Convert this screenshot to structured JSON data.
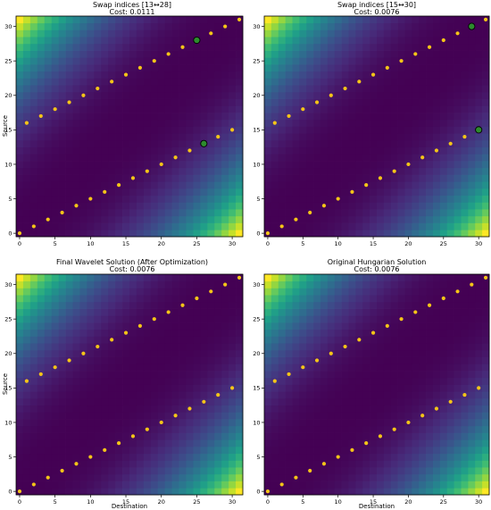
{
  "colormap": {
    "name": "viridis",
    "stops": [
      "#440154",
      "#482878",
      "#3e4989",
      "#31688e",
      "#26828e",
      "#1f9e89",
      "#35b779",
      "#6ece58",
      "#b5de2b",
      "#fde725"
    ]
  },
  "colors": {
    "assignment_dot": "#f5c518",
    "swap_dot": "#2e8b2e",
    "swap_dot_edge": "#000000"
  },
  "chart_data": [
    {
      "type": "heatmap",
      "title": "Swap indices [13↔28]",
      "subtitle": "Cost: 0.0111",
      "xlabel": "",
      "ylabel": "Source",
      "n": 32,
      "xlim": [
        -0.5,
        31.5
      ],
      "ylim": [
        -0.5,
        31.5
      ],
      "xticks": [
        "0",
        "5",
        "10",
        "15",
        "20",
        "25",
        "30"
      ],
      "yticks": [
        "0",
        "5",
        "10",
        "15",
        "20",
        "25",
        "30"
      ],
      "assignment": [
        0,
        2,
        4,
        6,
        8,
        10,
        12,
        14,
        16,
        18,
        20,
        22,
        24,
        26,
        28,
        30,
        1,
        3,
        5,
        7,
        9,
        11,
        13,
        15,
        17,
        19,
        21,
        23,
        25,
        27,
        29,
        31
      ],
      "swapped_points": [
        {
          "x": 26,
          "y": 13
        },
        {
          "x": 25,
          "y": 28
        }
      ]
    },
    {
      "type": "heatmap",
      "title": "Swap indices [15↔30]",
      "subtitle": "Cost: 0.0076",
      "xlabel": "",
      "ylabel": "",
      "n": 32,
      "xlim": [
        -0.5,
        31.5
      ],
      "ylim": [
        -0.5,
        31.5
      ],
      "xticks": [
        "0",
        "5",
        "10",
        "15",
        "20",
        "25",
        "30"
      ],
      "yticks": [
        "0",
        "5",
        "10",
        "15",
        "20",
        "25",
        "30"
      ],
      "assignment": [
        0,
        2,
        4,
        6,
        8,
        10,
        12,
        14,
        16,
        18,
        20,
        22,
        24,
        26,
        28,
        30,
        1,
        3,
        5,
        7,
        9,
        11,
        13,
        15,
        17,
        19,
        21,
        23,
        25,
        27,
        29,
        31
      ],
      "swapped_points": [
        {
          "x": 30,
          "y": 15
        },
        {
          "x": 29,
          "y": 30
        }
      ]
    },
    {
      "type": "heatmap",
      "title": "Final Wavelet Solution (After Optimization)",
      "subtitle": "Cost: 0.0076",
      "xlabel": "Destination",
      "ylabel": "Source",
      "n": 32,
      "xlim": [
        -0.5,
        31.5
      ],
      "ylim": [
        -0.5,
        31.5
      ],
      "xticks": [
        "0",
        "5",
        "10",
        "15",
        "20",
        "25",
        "30"
      ],
      "yticks": [
        "0",
        "5",
        "10",
        "15",
        "20",
        "25",
        "30"
      ],
      "assignment": [
        0,
        2,
        4,
        6,
        8,
        10,
        12,
        14,
        16,
        18,
        20,
        22,
        24,
        26,
        28,
        30,
        1,
        3,
        5,
        7,
        9,
        11,
        13,
        15,
        17,
        19,
        21,
        23,
        25,
        27,
        29,
        31
      ],
      "swapped_points": []
    },
    {
      "type": "heatmap",
      "title": "Original Hungarian Solution",
      "subtitle": "Cost: 0.0076",
      "xlabel": "Destination",
      "ylabel": "",
      "n": 32,
      "xlim": [
        -0.5,
        31.5
      ],
      "ylim": [
        -0.5,
        31.5
      ],
      "xticks": [
        "0",
        "5",
        "10",
        "15",
        "20",
        "25",
        "30"
      ],
      "yticks": [
        "0",
        "5",
        "10",
        "15",
        "20",
        "25",
        "30"
      ],
      "assignment": [
        0,
        2,
        4,
        6,
        8,
        10,
        12,
        14,
        16,
        18,
        20,
        22,
        24,
        26,
        28,
        30,
        1,
        3,
        5,
        7,
        9,
        11,
        13,
        15,
        17,
        19,
        21,
        23,
        25,
        27,
        29,
        31
      ],
      "swapped_points": []
    }
  ]
}
